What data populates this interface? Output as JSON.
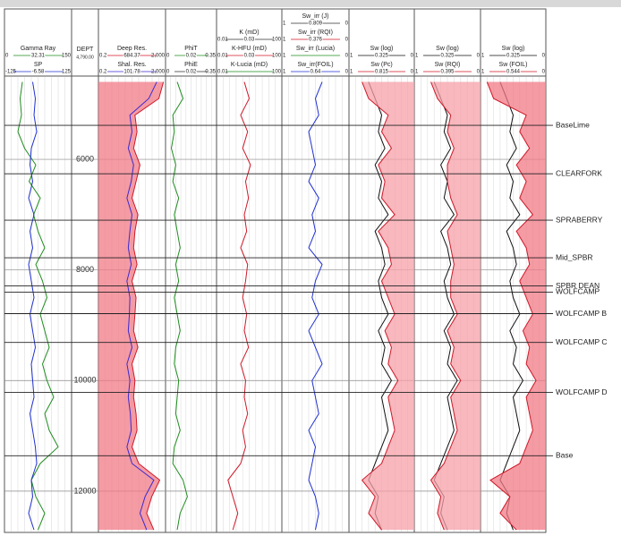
{
  "depth_range": [
    4510,
    12730
  ],
  "depth_samples": [
    4600,
    4900,
    5200,
    5500,
    5800,
    6100,
    6400,
    6700,
    7000,
    7300,
    7600,
    7900,
    8200,
    8500,
    8800,
    9100,
    9400,
    9700,
    10000,
    10300,
    10600,
    10900,
    11200,
    11500,
    11800,
    12100,
    12400,
    12700
  ],
  "dept_track": {
    "name": "DEPT",
    "value": "4,790.00",
    "ticks": [
      6000,
      8000,
      10000,
      12000
    ]
  },
  "tracks": [
    {
      "curves": [
        {
          "name": "Gamma Ray",
          "color": "#1e8c1e",
          "scale": [
            0,
            150
          ],
          "mid": "32.31",
          "values": [
            40,
            35,
            38,
            30,
            45,
            70,
            55,
            80,
            65,
            75,
            90,
            70,
            85,
            95,
            80,
            90,
            100,
            85,
            95,
            110,
            90,
            100,
            120,
            80,
            60,
            70,
            90,
            75
          ]
        },
        {
          "name": "SP",
          "color": "#2030d0",
          "scale": [
            -125,
            125
          ],
          "mid": "-6.58",
          "values": [
            -20,
            -10,
            -15,
            -5,
            -25,
            -30,
            -20,
            -35,
            -15,
            -30,
            -20,
            -35,
            -25,
            -15,
            -30,
            -20,
            -10,
            -25,
            -20,
            -15,
            -30,
            -20,
            -10,
            -5,
            -25,
            -20,
            -35,
            -15
          ]
        }
      ]
    },
    {
      "curves": [
        {
          "name": "Deep Res.",
          "color": "#d01828",
          "log": true,
          "fill": "#f27a86",
          "scale": [
            0.2,
            {
              "value": 2000,
              "label": "2,000"
            }
          ],
          "mid": "684.37",
          "values": [
            1500,
            800,
            30,
            40,
            25,
            60,
            35,
            20,
            45,
            30,
            25,
            40,
            20,
            35,
            30,
            25,
            45,
            20,
            30,
            25,
            35,
            40,
            20,
            50,
            900,
            300,
            150,
            400
          ]
        },
        {
          "name": "Shal. Res.",
          "color": "#3a2ad0",
          "log": true,
          "scale": [
            0.2,
            {
              "value": 2000,
              "label": "2,000"
            }
          ],
          "mid": "101.78",
          "values": [
            600,
            200,
            15,
            20,
            12,
            25,
            18,
            10,
            20,
            15,
            12,
            18,
            10,
            15,
            14,
            12,
            20,
            10,
            15,
            12,
            16,
            18,
            10,
            20,
            400,
            120,
            60,
            150
          ]
        }
      ]
    },
    {
      "curves": [
        {
          "name": "PhiT",
          "color": "#1e8c1e",
          "scale": [
            0,
            0.35
          ],
          "mid": "0.02",
          "values": [
            0.08,
            0.12,
            0.05,
            0.06,
            0.04,
            0.07,
            0.05,
            0.09,
            0.06,
            0.08,
            0.1,
            0.07,
            0.09,
            0.06,
            0.08,
            0.1,
            0.07,
            0.06,
            0.09,
            0.08,
            0.07,
            0.1,
            0.06,
            0.05,
            0.12,
            0.15,
            0.1,
            0.08
          ]
        },
        {
          "name": "PhiE",
          "color": "#333333",
          "scale": [
            0,
            0.35
          ],
          "mid": "0.02"
        }
      ]
    },
    {
      "curves": [
        {
          "name": "K (mD)",
          "color": "#333333",
          "log": true,
          "scale": [
            0.01,
            100
          ],
          "mid": "0.03"
        },
        {
          "name": "K-HFU (mD)",
          "color": "#d01828",
          "log": true,
          "scale": [
            0.01,
            100
          ],
          "mid": "0.03",
          "values": [
            0.5,
            1,
            0.3,
            0.8,
            0.4,
            1.2,
            0.6,
            0.9,
            0.5,
            0.7,
            0.3,
            0.8,
            0.6,
            0.4,
            0.7,
            0.5,
            0.9,
            0.3,
            0.6,
            0.5,
            0.8,
            0.4,
            0.6,
            0.3,
            0.05,
            0.1,
            0.2,
            0.1
          ]
        },
        {
          "name": "K-Lucia (mD)",
          "color": "#1e8c1e",
          "log": true,
          "scale": [
            0.01,
            100
          ]
        }
      ]
    },
    {
      "curves": [
        {
          "name": "Sw_irr (J)",
          "color": "#333333",
          "scale": [
            1,
            0
          ],
          "mid": "0.809"
        },
        {
          "name": "Sw_irr (RQI)",
          "color": "#d01828",
          "scale": [
            1,
            0
          ],
          "mid": "0.376"
        },
        {
          "name": "Sw_irr (Lucia)",
          "color": "#1e8c1e",
          "scale": [
            1,
            0
          ]
        },
        {
          "name": "Sw_irr(FOIL)",
          "color": "#2030d0",
          "scale": [
            1,
            0
          ],
          "mid": "0.64",
          "values": [
            0.4,
            0.5,
            0.45,
            0.6,
            0.55,
            0.5,
            0.6,
            0.45,
            0.55,
            0.5,
            0.6,
            0.4,
            0.5,
            0.55,
            0.45,
            0.6,
            0.5,
            0.4,
            0.55,
            0.5,
            0.45,
            0.6,
            0.5,
            0.55,
            0.6,
            0.5,
            0.45,
            0.5
          ]
        }
      ]
    },
    {
      "curves": [
        {
          "name": "Sw (log)",
          "color": "#111111",
          "scale": [
            1,
            0
          ],
          "mid": "0.325",
          "values": [
            0.7,
            0.6,
            0.5,
            0.55,
            0.45,
            0.6,
            0.5,
            0.55,
            0.4,
            0.6,
            0.5,
            0.45,
            0.55,
            0.5,
            0.4,
            0.55,
            0.45,
            0.5,
            0.35,
            0.5,
            0.45,
            0.4,
            0.5,
            0.6,
            0.7,
            0.55,
            0.6,
            0.5
          ]
        },
        {
          "name": "Sw (Pc)",
          "color": "#d01828",
          "fill": "#f5a0a8",
          "scale": [
            1,
            0
          ],
          "mid": "0.815",
          "values": [
            0.8,
            0.7,
            0.4,
            0.5,
            0.35,
            0.55,
            0.45,
            0.5,
            0.3,
            0.55,
            0.4,
            0.35,
            0.5,
            0.4,
            0.3,
            0.45,
            0.35,
            0.4,
            0.25,
            0.4,
            0.35,
            0.3,
            0.4,
            0.5,
            0.8,
            0.6,
            0.7,
            0.5
          ]
        }
      ]
    },
    {
      "curves": [
        {
          "name": "Sw (log)",
          "color": "#111111",
          "scale": [
            1,
            0
          ],
          "mid": "0.325",
          "values": [
            0.7,
            0.6,
            0.5,
            0.55,
            0.45,
            0.6,
            0.5,
            0.55,
            0.4,
            0.6,
            0.5,
            0.45,
            0.55,
            0.5,
            0.4,
            0.55,
            0.45,
            0.5,
            0.35,
            0.5,
            0.45,
            0.4,
            0.5,
            0.6,
            0.7,
            0.55,
            0.6,
            0.5
          ]
        },
        {
          "name": "Sw (RQI)",
          "color": "#d01828",
          "fill": "#f5a0a8",
          "scale": [
            1,
            0
          ],
          "mid": "0.395",
          "values": [
            0.75,
            0.65,
            0.45,
            0.5,
            0.4,
            0.5,
            0.5,
            0.45,
            0.35,
            0.5,
            0.45,
            0.4,
            0.45,
            0.45,
            0.35,
            0.5,
            0.4,
            0.45,
            0.3,
            0.45,
            0.4,
            0.35,
            0.45,
            0.55,
            0.75,
            0.6,
            0.65,
            0.55
          ]
        }
      ]
    },
    {
      "curves": [
        {
          "name": "Sw (log)",
          "color": "#111111",
          "scale": [
            1,
            0
          ],
          "mid": "0.325",
          "values": [
            0.7,
            0.6,
            0.5,
            0.55,
            0.45,
            0.6,
            0.5,
            0.55,
            0.4,
            0.6,
            0.5,
            0.45,
            0.55,
            0.5,
            0.4,
            0.55,
            0.45,
            0.5,
            0.35,
            0.5,
            0.45,
            0.4,
            0.5,
            0.6,
            0.7,
            0.55,
            0.6,
            0.5
          ]
        },
        {
          "name": "Sw (FOIL)",
          "color": "#d01828",
          "fill": "#f27a86",
          "scale": [
            1,
            0
          ],
          "mid": "0.544",
          "values": [
            0.9,
            0.8,
            0.3,
            0.4,
            0.25,
            0.45,
            0.3,
            0.4,
            0.2,
            0.45,
            0.3,
            0.25,
            0.4,
            0.3,
            0.2,
            0.35,
            0.25,
            0.3,
            0.15,
            0.3,
            0.25,
            0.2,
            0.3,
            0.4,
            0.85,
            0.55,
            0.7,
            0.45
          ]
        }
      ]
    }
  ],
  "tops": [
    {
      "name": "BaseLime",
      "depth": 5385
    },
    {
      "name": "CLEARFORK",
      "depth": 6260
    },
    {
      "name": "SPRABERRY",
      "depth": 7100
    },
    {
      "name": "Mid_SPBR",
      "depth": 7780
    },
    {
      "name": "SPBR DEAN",
      "depth": 8290
    },
    {
      "name": "WOLFCAMP",
      "depth": 8400
    },
    {
      "name": "WOLFCAMP B",
      "depth": 8790
    },
    {
      "name": "WOLFCAMP C",
      "depth": 9310
    },
    {
      "name": "WOLFCAMP D",
      "depth": 10215
    },
    {
      "name": "Base",
      "depth": 11360
    }
  ]
}
